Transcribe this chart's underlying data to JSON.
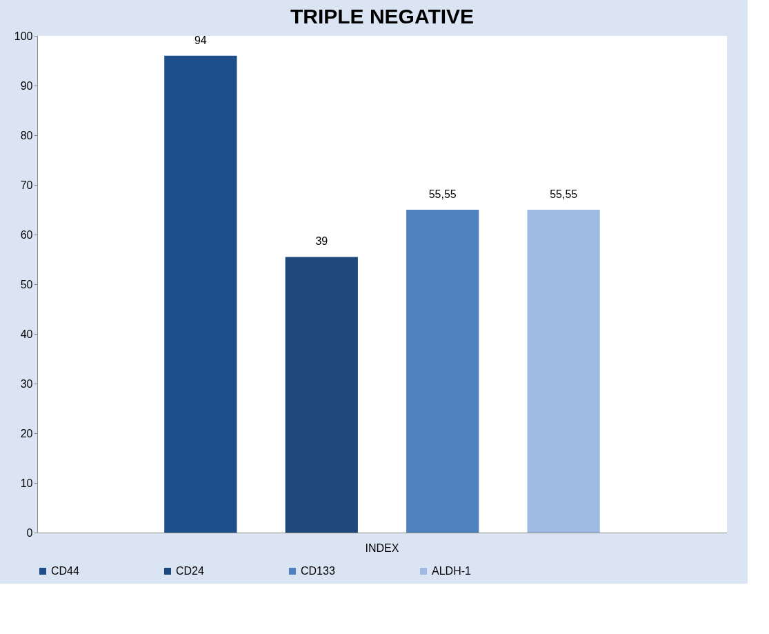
{
  "chart_data": {
    "type": "bar",
    "title": "TRIPLE NEGATIVE",
    "categories": [
      "INDEX"
    ],
    "series": [
      {
        "name": "CD44",
        "color": "#1f4e8c",
        "values": [
          96
        ]
      },
      {
        "name": "CD24",
        "color": "#1f497d",
        "values": [
          55.5
        ]
      },
      {
        "name": "CD133",
        "color": "#4f81bd",
        "values": [
          65
        ]
      },
      {
        "name": "ALDH-1",
        "color": "#9fbbe3",
        "values": [
          65
        ]
      }
    ],
    "annotations": [
      "94",
      "39",
      "55,55",
      "55,55"
    ],
    "ylim": [
      0,
      100
    ],
    "yticks": [
      0,
      10,
      20,
      30,
      40,
      50,
      60,
      70,
      80,
      90,
      100
    ],
    "grid": false,
    "legend": "bottom"
  }
}
